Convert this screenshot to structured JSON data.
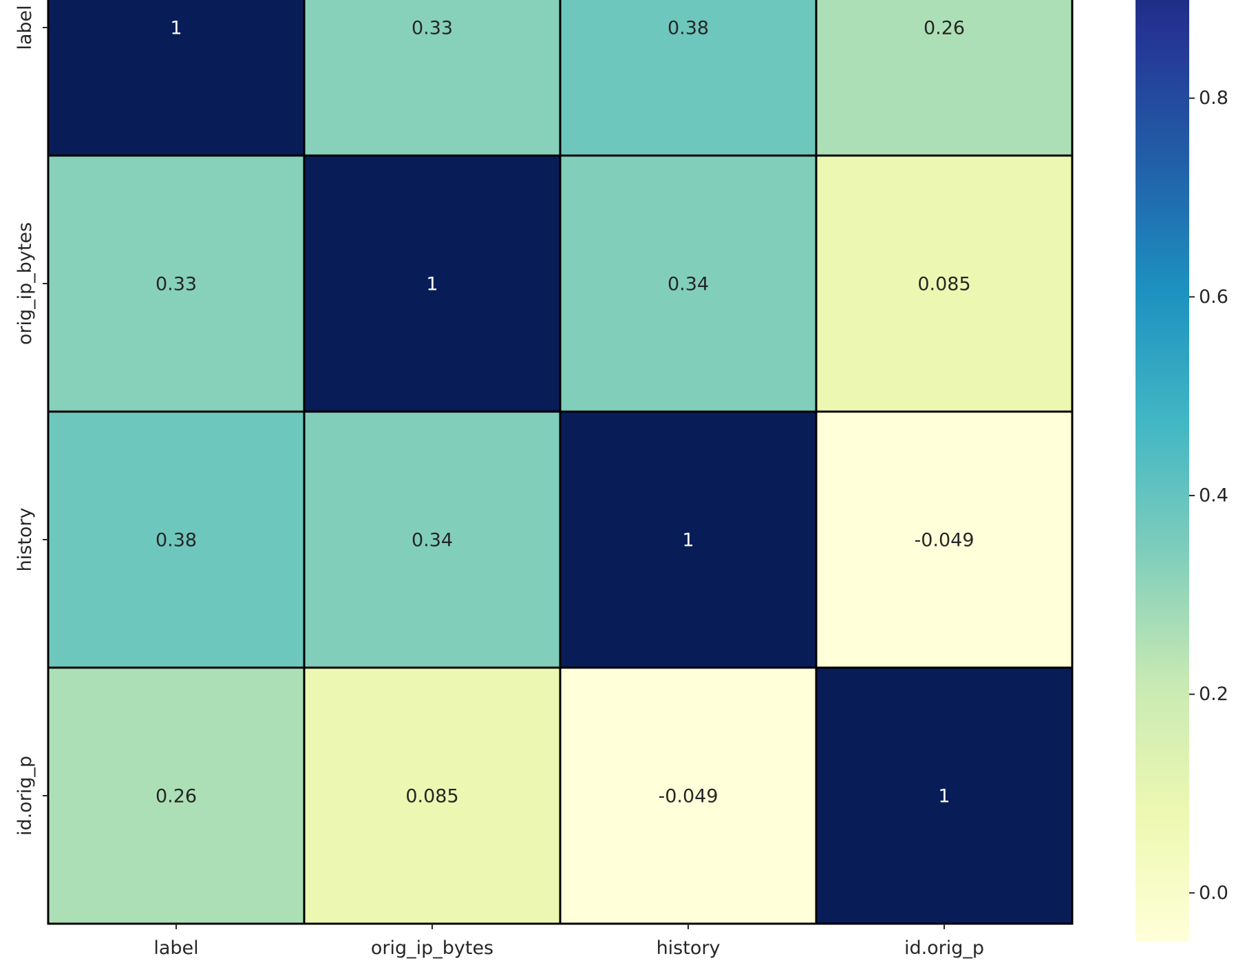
{
  "chart_data": {
    "type": "heatmap",
    "rows": [
      "label",
      "orig_ip_bytes",
      "history",
      "id.orig_p"
    ],
    "columns": [
      "label",
      "orig_ip_bytes",
      "history",
      "id.orig_p"
    ],
    "values": [
      [
        1,
        0.33,
        0.38,
        0.26
      ],
      [
        0.33,
        1,
        0.34,
        0.085
      ],
      [
        0.38,
        0.34,
        1,
        -0.049
      ],
      [
        0.26,
        0.085,
        -0.049,
        1
      ]
    ],
    "annotations": [
      [
        "1",
        "0.33",
        "0.38",
        "0.26"
      ],
      [
        "0.33",
        "1",
        "0.34",
        "0.085"
      ],
      [
        "0.38",
        "0.34",
        "1",
        "-0.049"
      ],
      [
        "0.26",
        "0.085",
        "-0.049",
        "1"
      ]
    ],
    "colormap": "YlGnBu",
    "colorbar": {
      "ticks": [
        0.0,
        0.2,
        0.4,
        0.6,
        0.8
      ],
      "tick_labels": [
        "0.0",
        "0.2",
        "0.4",
        "0.6",
        "0.8"
      ],
      "range": [
        -0.049,
        1.0
      ]
    },
    "cell_border_color": "#000000",
    "dark_text_color": "#262626",
    "light_text_color": "#ffffff"
  }
}
